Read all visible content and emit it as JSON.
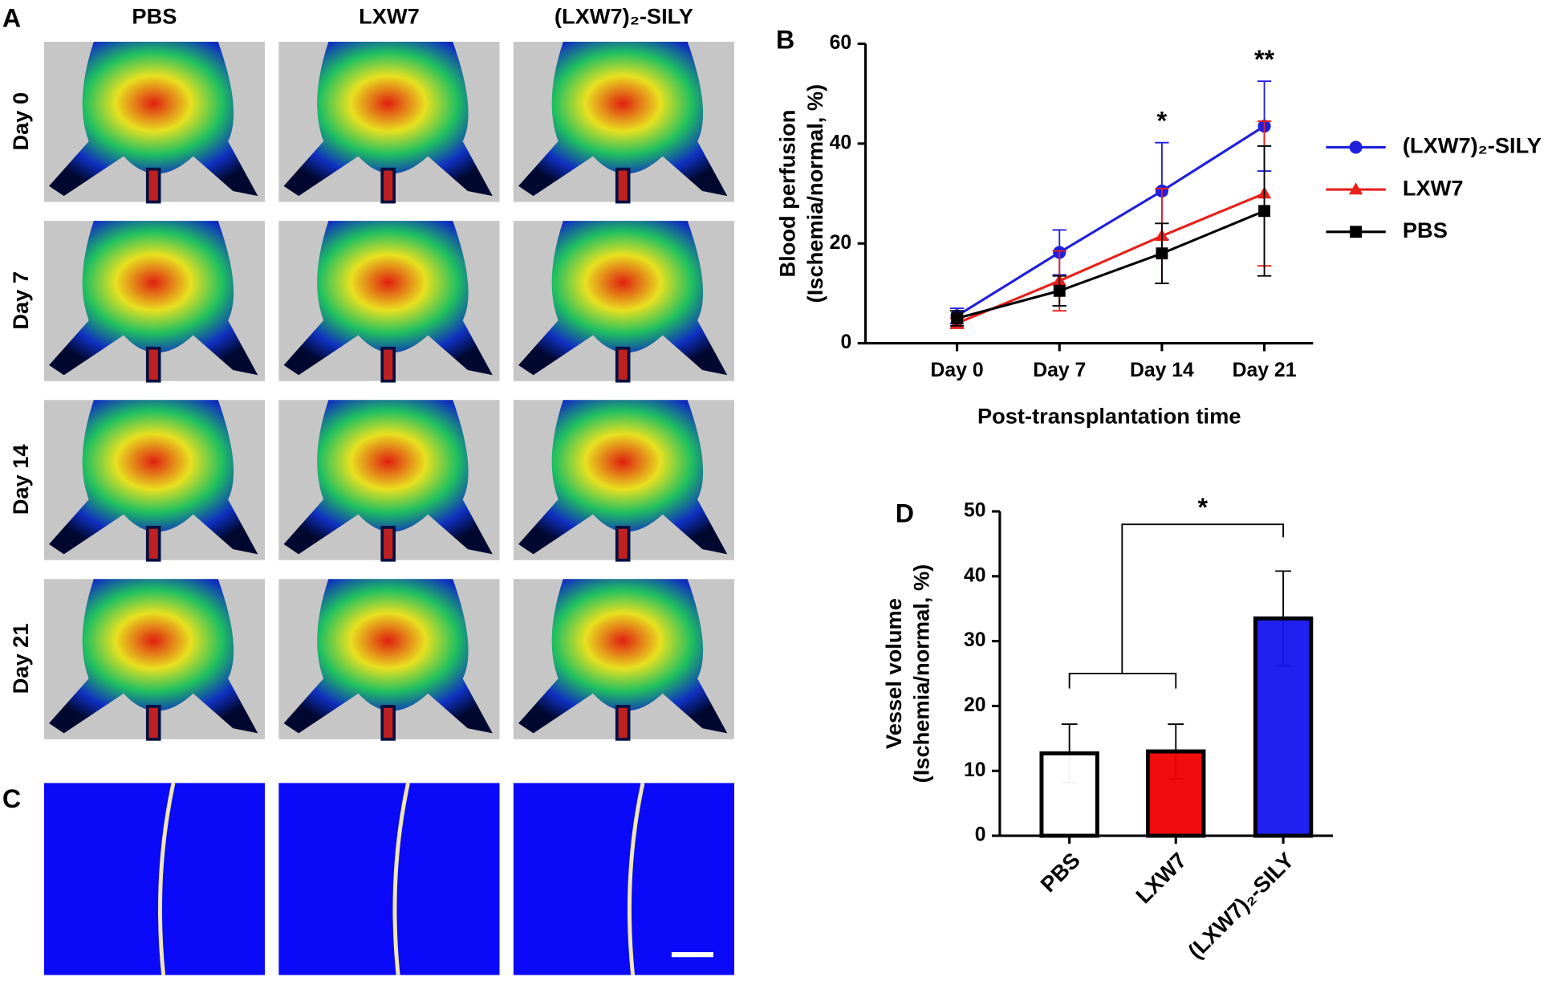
{
  "panels": {
    "a": {
      "letter": "A",
      "columns": [
        "PBS",
        "LXW7",
        "(LXW7)₂-SILY"
      ],
      "rows": [
        "Day 0",
        "Day 7",
        "Day 14",
        "Day 21"
      ]
    },
    "c": {
      "letter": "C"
    }
  },
  "chart_data": [
    {
      "type": "line",
      "letter": "B",
      "ylabel": [
        "Blood perfusion",
        "(Ischemia/normal, %)"
      ],
      "xlabel": "Post-transplantation time",
      "categories": [
        "Day 0",
        "Day 7",
        "Day 14",
        "Day 21"
      ],
      "ylim": [
        0,
        60
      ],
      "yticks": [
        0,
        20,
        40,
        60
      ],
      "series": [
        {
          "name": "(LXW7)₂-SILY",
          "color": "#1f1fdc",
          "marker": "circle",
          "values": [
            5.5,
            18.2,
            30.5,
            43.5
          ],
          "errors": [
            1.5,
            4.5,
            9.7,
            9
          ]
        },
        {
          "name": "LXW7",
          "color": "#e8201c",
          "marker": "triangle",
          "values": [
            4,
            12.5,
            21.5,
            30
          ],
          "errors": [
            1,
            6,
            9.5,
            14.5
          ]
        },
        {
          "name": "PBS",
          "color": "#000000",
          "marker": "square",
          "values": [
            5,
            10.5,
            18,
            26.5
          ],
          "errors": [
            1.5,
            3,
            6,
            13
          ]
        }
      ],
      "annotations": [
        {
          "category": 2,
          "text": "*"
        },
        {
          "category": 3,
          "text": "**"
        }
      ],
      "legend": "right"
    },
    {
      "type": "bar",
      "letter": "D",
      "ylabel": [
        "Vessel volume",
        "(Ischemia/normal, %)"
      ],
      "categories": [
        "PBS",
        "LXW7",
        "(LXW7)₂-SILY"
      ],
      "values": [
        12.7,
        13,
        33.5
      ],
      "errors": [
        4.5,
        4.2,
        7.3
      ],
      "colors": [
        "#ffffff",
        "#f00000",
        "#1414f0"
      ],
      "ylim": [
        0,
        50
      ],
      "yticks": [
        0,
        10,
        20,
        30,
        40,
        50
      ],
      "annotations": [
        {
          "text": "*"
        }
      ]
    }
  ]
}
